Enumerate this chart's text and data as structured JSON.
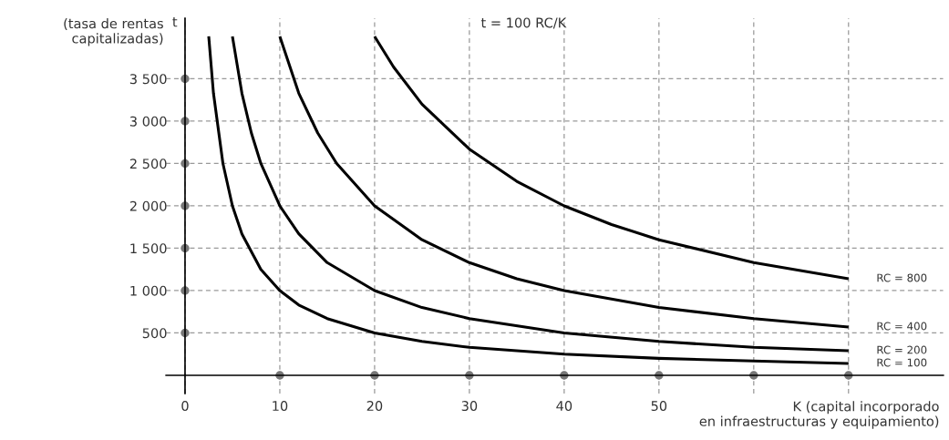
{
  "chart_data": {
    "type": "line",
    "title": "t = 100 RC/K",
    "xlabel": "K (capital incorporado\nen infraestructuras y equipamiento)",
    "ylabel": "(tasa de rentas\ncapitalizadas)",
    "annotations": [
      "t"
    ],
    "xlim": [
      -2,
      80
    ],
    "ylim": [
      -215,
      4215
    ],
    "xticks": [
      0,
      10,
      20,
      30,
      40,
      50,
      {
        "value": 60,
        "label": null
      },
      {
        "value": 70,
        "label": null
      }
    ],
    "yticks": [
      {
        "value": 500,
        "label": "500"
      },
      {
        "value": 1000,
        "label": "1 000"
      },
      {
        "value": 1500,
        "label": "1 500"
      },
      {
        "value": 2000,
        "label": "2 000"
      },
      {
        "value": 2500,
        "label": "2 500"
      },
      {
        "value": 3000,
        "label": "3 000"
      },
      {
        "value": 3500,
        "label": "3 500"
      }
    ],
    "grid": true,
    "series": [
      {
        "name": "RC = 800",
        "color": "#000000",
        "x": [
          20,
          22,
          25,
          30,
          35,
          40,
          45,
          50,
          60,
          70
        ],
        "values": [
          4000,
          3640,
          3200,
          2670,
          2290,
          2000,
          1780,
          1600,
          1330,
          1140
        ]
      },
      {
        "name": "RC = 400",
        "color": "#000000",
        "x": [
          10,
          12,
          14,
          16,
          20,
          25,
          30,
          35,
          40,
          50,
          60,
          70
        ],
        "values": [
          4000,
          3330,
          2860,
          2500,
          2000,
          1600,
          1330,
          1140,
          1000,
          800,
          670,
          570
        ]
      },
      {
        "name": "RC = 200",
        "color": "#000000",
        "x": [
          5,
          6,
          7,
          8,
          10,
          12,
          15,
          20,
          25,
          30,
          40,
          50,
          60,
          70
        ],
        "values": [
          4000,
          3330,
          2860,
          2500,
          2000,
          1670,
          1330,
          1000,
          800,
          670,
          500,
          400,
          330,
          290
        ]
      },
      {
        "name": "RC = 100",
        "color": "#000000",
        "x": [
          2.5,
          3,
          4,
          5,
          6,
          8,
          10,
          12,
          15,
          20,
          25,
          30,
          40,
          50,
          60,
          70
        ],
        "values": [
          4000,
          3330,
          2500,
          2000,
          1670,
          1250,
          1000,
          830,
          670,
          500,
          400,
          330,
          250,
          200,
          170,
          140
        ]
      }
    ]
  }
}
